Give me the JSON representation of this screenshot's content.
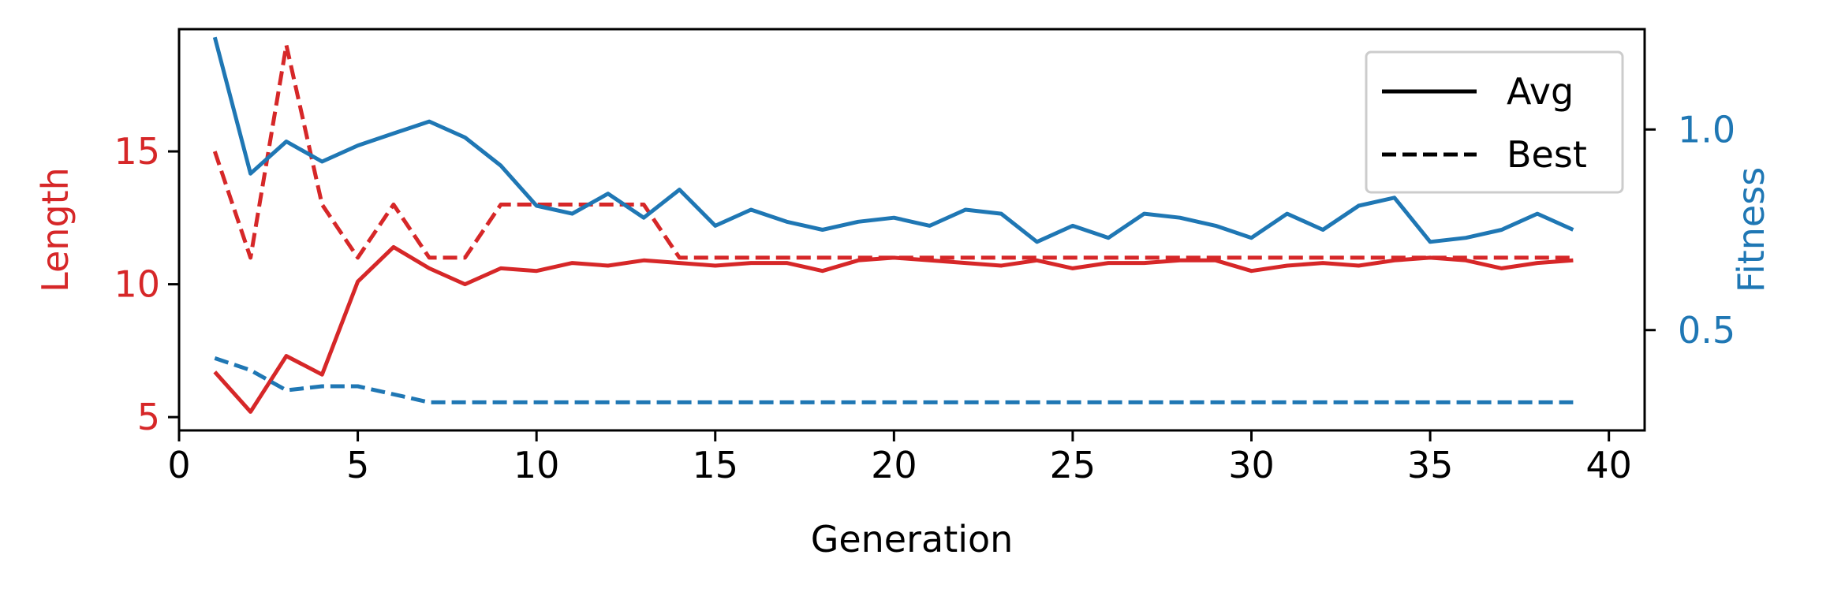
{
  "chart_data": {
    "type": "line",
    "xlabel": "Generation",
    "xlim": [
      0,
      41
    ],
    "xticks": [
      0,
      5,
      10,
      15,
      20,
      25,
      30,
      35,
      40
    ],
    "left_axis": {
      "label": "Length",
      "color": "#d62728",
      "ylim": [
        4.5,
        19.6
      ],
      "ticks": [
        5,
        10,
        15
      ]
    },
    "right_axis": {
      "label": "Fitness",
      "color": "#1f77b4",
      "ylim": [
        0.25,
        1.25
      ],
      "ticks": [
        0.5,
        1.0
      ],
      "tick_labels": [
        "0.5",
        "1.0"
      ]
    },
    "grid": false,
    "legend": {
      "placement": "top-right",
      "entries": [
        {
          "label": "Avg",
          "style": "solid"
        },
        {
          "label": "Best",
          "style": "dashed"
        }
      ]
    },
    "x": [
      1,
      2,
      3,
      4,
      5,
      6,
      7,
      8,
      9,
      10,
      11,
      12,
      13,
      14,
      15,
      16,
      17,
      18,
      19,
      20,
      21,
      22,
      23,
      24,
      25,
      26,
      27,
      28,
      29,
      30,
      31,
      32,
      33,
      34,
      35,
      36,
      37,
      38,
      39
    ],
    "series": [
      {
        "axis": "left",
        "color": "#d62728",
        "style": "solid",
        "values": [
          6.7,
          5.2,
          7.3,
          6.6,
          10.1,
          11.4,
          10.6,
          10.0,
          10.6,
          10.5,
          10.8,
          10.7,
          10.9,
          10.8,
          10.7,
          10.8,
          10.8,
          10.5,
          10.9,
          11.0,
          10.9,
          10.8,
          10.7,
          10.9,
          10.6,
          10.8,
          10.8,
          10.9,
          10.9,
          10.5,
          10.7,
          10.8,
          10.7,
          10.9,
          11.0,
          10.9,
          10.6,
          10.8,
          10.9
        ]
      },
      {
        "axis": "left",
        "color": "#d62728",
        "style": "dashed",
        "values": [
          15,
          11,
          19,
          13,
          11,
          13,
          11,
          11,
          13,
          13,
          13,
          13,
          13,
          11,
          11,
          11,
          11,
          11,
          11,
          11,
          11,
          11,
          11,
          11,
          11,
          11,
          11,
          11,
          11,
          11,
          11,
          11,
          11,
          11,
          11,
          11,
          11,
          11,
          11
        ]
      },
      {
        "axis": "right",
        "color": "#1f77b4",
        "style": "solid",
        "values": [
          1.23,
          0.89,
          0.97,
          0.92,
          0.96,
          0.99,
          1.02,
          0.98,
          0.91,
          0.81,
          0.79,
          0.84,
          0.78,
          0.85,
          0.76,
          0.8,
          0.77,
          0.75,
          0.77,
          0.78,
          0.76,
          0.8,
          0.79,
          0.72,
          0.76,
          0.73,
          0.79,
          0.78,
          0.76,
          0.73,
          0.79,
          0.75,
          0.81,
          0.83,
          0.72,
          0.73,
          0.75,
          0.79,
          0.75
        ]
      },
      {
        "axis": "right",
        "color": "#1f77b4",
        "style": "dashed",
        "values": [
          0.43,
          0.4,
          0.35,
          0.36,
          0.36,
          0.34,
          0.32,
          0.32,
          0.32,
          0.32,
          0.32,
          0.32,
          0.32,
          0.32,
          0.32,
          0.32,
          0.32,
          0.32,
          0.32,
          0.32,
          0.32,
          0.32,
          0.32,
          0.32,
          0.32,
          0.32,
          0.32,
          0.32,
          0.32,
          0.32,
          0.32,
          0.32,
          0.32,
          0.32,
          0.32,
          0.32,
          0.32,
          0.32,
          0.32
        ]
      }
    ]
  }
}
